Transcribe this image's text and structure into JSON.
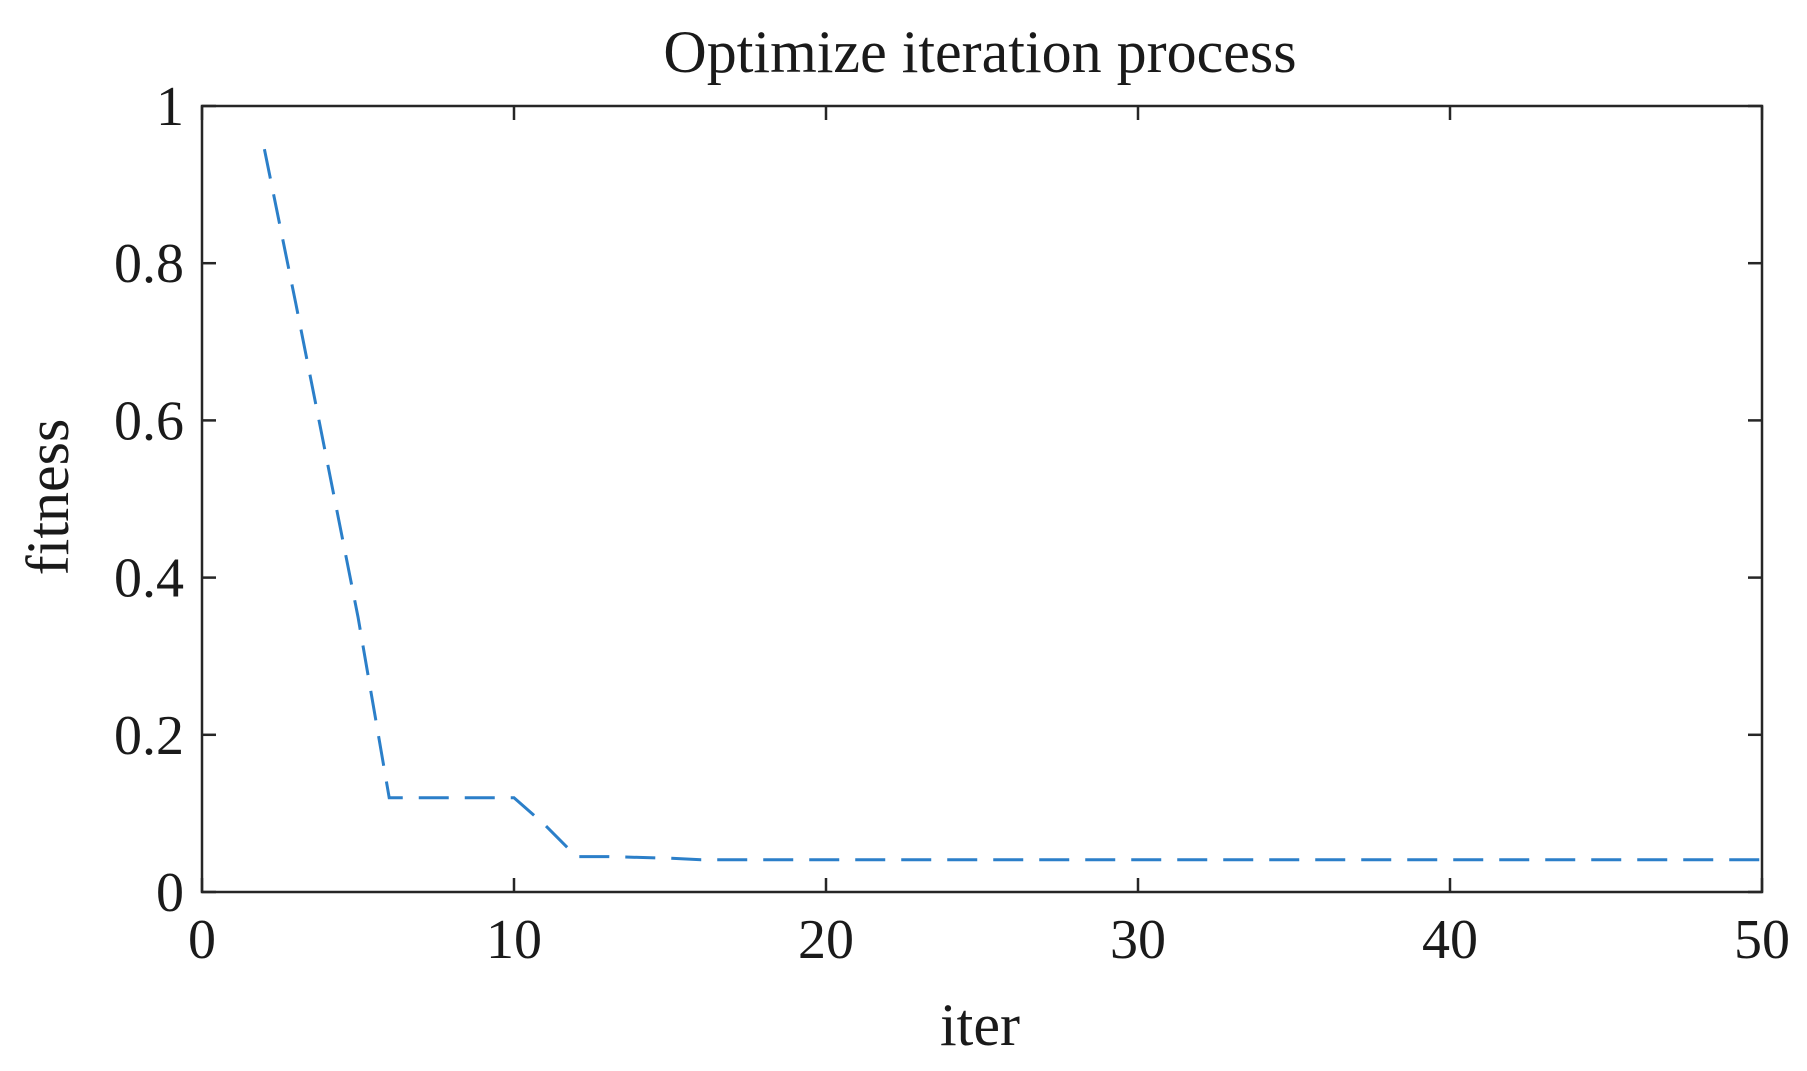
{
  "chart_data": {
    "type": "line",
    "title": "Optimize iteration process",
    "xlabel": "iter",
    "ylabel": "fitness",
    "xlim": [
      0,
      50
    ],
    "ylim": [
      0,
      1
    ],
    "xticks": [
      0,
      10,
      20,
      30,
      40,
      50
    ],
    "xtick_labels": [
      "0",
      "10",
      "20",
      "30",
      "40",
      "50"
    ],
    "yticks": [
      0,
      0.2,
      0.4,
      0.6,
      0.8,
      1
    ],
    "ytick_labels": [
      "0",
      "0.2",
      "0.4",
      "0.6",
      "0.8",
      "1"
    ],
    "grid": false,
    "series": [
      {
        "line_style": "dashed",
        "color": "#2b7fc9",
        "x": [
          2,
          3,
          4,
          5,
          6,
          7,
          8,
          9,
          10,
          11,
          12,
          13,
          14,
          15,
          16,
          17,
          18,
          19,
          20,
          21,
          22,
          23,
          24,
          25,
          26,
          27,
          28,
          29,
          30,
          31,
          32,
          33,
          34,
          35,
          36,
          37,
          38,
          39,
          40,
          41,
          42,
          43,
          44,
          45,
          46,
          47,
          48,
          49,
          50
        ],
        "y": [
          0.945,
          0.75,
          0.55,
          0.35,
          0.12,
          0.12,
          0.12,
          0.12,
          0.12,
          0.085,
          0.045,
          0.045,
          0.044,
          0.043,
          0.041,
          0.041,
          0.041,
          0.041,
          0.041,
          0.041,
          0.041,
          0.041,
          0.041,
          0.041,
          0.041,
          0.041,
          0.041,
          0.041,
          0.041,
          0.041,
          0.041,
          0.041,
          0.041,
          0.041,
          0.041,
          0.041,
          0.041,
          0.041,
          0.041,
          0.041,
          0.041,
          0.041,
          0.041,
          0.041,
          0.041,
          0.041,
          0.041,
          0.041,
          0.041
        ]
      }
    ]
  }
}
